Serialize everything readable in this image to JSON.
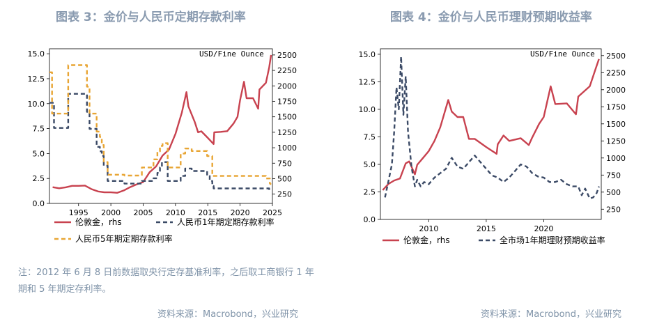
{
  "left": {
    "title": "图表 3：金价与人民币定期存款利率",
    "unit_label": "USD/Fine Ounce",
    "note": "注：2012 年 6 月 8 日前数据取央行定存基准利率，之后取工商银行 1 年期和 5 年期定存利率。",
    "source": "资料来源：Macrobond，兴业研究"
  },
  "right": {
    "title": "图表 4：金价与人民币理财预期收益率",
    "unit_label": "USD/Fine Ounce",
    "source": "资料来源：Macrobond，兴业研究"
  },
  "chart_data": [
    {
      "type": "line",
      "title": "图表 3：金价与人民币定期存款利率",
      "x_ticks": [
        "1995",
        "2000",
        "2005",
        "2010",
        "2015",
        "2020",
        "2025"
      ],
      "y_left_ticks": [
        "0.0",
        "2.5",
        "5.0",
        "7.5",
        "10.0",
        "12.5",
        "15.0"
      ],
      "y_right_ticks": [
        "250",
        "500",
        "750",
        "1000",
        "1250",
        "1500",
        "1750",
        "2000",
        "2250",
        "2500"
      ],
      "xlim": [
        1990.5,
        2025
      ],
      "ylim_left": [
        0,
        15.5
      ],
      "ylim_right": [
        100,
        2600
      ],
      "legend": [
        "伦敦金，rhs",
        "人民币1年期定期存款利率",
        "人民币5年期定期存款利率"
      ],
      "colors": {
        "gold": "#c8424f",
        "rate1y": "#3b4a66",
        "rate5y": "#e8a534"
      },
      "series": [
        {
          "name": "伦敦金，rhs",
          "axis": "right",
          "style": "solid",
          "x": [
            1991,
            1992,
            1993,
            1994,
            1995,
            1996,
            1997,
            1998,
            1999,
            2000,
            2001,
            2002,
            2003,
            2004,
            2005,
            2006,
            2007,
            2008,
            2009,
            2010,
            2011,
            2011.7,
            2012,
            2013,
            2013.5,
            2014,
            2015,
            2015.9,
            2016,
            2017,
            2018,
            2019,
            2019.6,
            2020,
            2020.6,
            2021,
            2022,
            2022.8,
            2023,
            2024,
            2024.5,
            2024.8
          ],
          "y": [
            362,
            344,
            360,
            384,
            384,
            388,
            331,
            294,
            279,
            279,
            271,
            310,
            363,
            409,
            445,
            604,
            697,
            872,
            972,
            1225,
            1572,
            1900,
            1669,
            1411,
            1250,
            1266,
            1160,
            1060,
            1250,
            1257,
            1268,
            1393,
            1500,
            1770,
            2067,
            1800,
            1800,
            1630,
            1941,
            2050,
            2300,
            2500
          ]
        },
        {
          "name": "人民币1年期定期存款利率",
          "axis": "left",
          "style": "dash",
          "x": [
            1990.5,
            1991.2,
            1991.2,
            1993.4,
            1993.4,
            1996.3,
            1996.3,
            1996.7,
            1996.7,
            1997.8,
            1997.8,
            1998.3,
            1998.3,
            1998.6,
            1998.6,
            1998.9,
            1998.9,
            1999.5,
            1999.5,
            2002.1,
            2002.1,
            2004.8,
            2004.8,
            2006.6,
            2006.6,
            2007.2,
            2007.2,
            2007.6,
            2007.6,
            2007.9,
            2007.9,
            2008.8,
            2008.8,
            2010.8,
            2010.8,
            2011.5,
            2011.5,
            2012.5,
            2012.5,
            2014.9,
            2014.9,
            2015.3,
            2015.3,
            2015.7,
            2015.7,
            2015.9,
            2015.9,
            2024.5,
            2024.5,
            2024.7
          ],
          "y": [
            10.08,
            10.08,
            7.56,
            7.56,
            10.98,
            10.98,
            9.18,
            9.18,
            7.47,
            7.47,
            5.67,
            5.67,
            5.22,
            5.22,
            4.77,
            4.77,
            3.78,
            3.78,
            2.25,
            2.25,
            1.98,
            1.98,
            2.25,
            2.25,
            2.52,
            2.52,
            3.06,
            3.06,
            3.6,
            3.6,
            4.14,
            4.14,
            2.25,
            2.25,
            2.75,
            2.75,
            3.5,
            3.5,
            3.25,
            3.25,
            2.75,
            2.75,
            2.25,
            2.25,
            1.75,
            1.75,
            1.5,
            1.5,
            1.35,
            1.1
          ]
        },
        {
          "name": "人民币5年期定期存款利率",
          "axis": "left",
          "style": "dash",
          "x": [
            1990.5,
            1990.9,
            1990.9,
            1991.2,
            1991.2,
            1993.4,
            1993.4,
            1996.3,
            1996.3,
            1996.7,
            1996.7,
            1997.8,
            1997.8,
            1998.3,
            1998.3,
            1998.6,
            1998.6,
            1998.9,
            1998.9,
            1999.5,
            1999.5,
            2002.1,
            2002.1,
            2004.8,
            2004.8,
            2006.6,
            2006.6,
            2007.2,
            2007.2,
            2007.6,
            2007.6,
            2008.0,
            2008.0,
            2008.8,
            2008.8,
            2010.8,
            2010.8,
            2011.5,
            2011.5,
            2012.5,
            2012.5,
            2014.9,
            2014.9,
            2015.7,
            2015.7,
            2024.0,
            2024.0,
            2024.6,
            2024.6,
            2024.8
          ],
          "y": [
            13.14,
            13.14,
            9.0,
            9.0,
            9.0,
            9.0,
            13.86,
            13.86,
            11.7,
            11.7,
            9.0,
            9.0,
            7.2,
            7.2,
            6.66,
            6.66,
            5.85,
            5.85,
            4.14,
            4.14,
            2.88,
            2.88,
            2.79,
            2.79,
            3.6,
            3.6,
            4.41,
            4.41,
            5.22,
            5.22,
            5.76,
            5.76,
            6.03,
            6.03,
            3.6,
            3.6,
            5.0,
            5.0,
            5.5,
            5.5,
            5.25,
            5.25,
            4.75,
            4.75,
            2.75,
            2.75,
            2.5,
            2.5,
            2.0,
            1.9
          ]
        }
      ]
    },
    {
      "type": "line",
      "title": "图表 4：金价与人民币理财预期收益率",
      "x_ticks": [
        "2010",
        "2015",
        "2020"
      ],
      "y_left_ticks": [
        "0.0",
        "2.5",
        "5.0",
        "7.5",
        "10.0",
        "12.5",
        "15.0"
      ],
      "y_right_ticks": [
        "250",
        "500",
        "750",
        "1000",
        "1250",
        "1500",
        "1750",
        "2000",
        "2250",
        "2500"
      ],
      "xlim": [
        2005.8,
        2025
      ],
      "ylim_left": [
        0,
        15.5
      ],
      "ylim_right": [
        100,
        2600
      ],
      "legend": [
        "伦敦金，rhs",
        "全市场1年期理财预期收益率"
      ],
      "colors": {
        "gold": "#c8424f",
        "wmp": "#3b4a66"
      },
      "series": [
        {
          "name": "伦敦金，rhs",
          "axis": "right",
          "style": "solid",
          "x": [
            2006,
            2006.5,
            2007,
            2007.5,
            2008,
            2008.3,
            2008.8,
            2009,
            2009.5,
            2010,
            2010.5,
            2011,
            2011.7,
            2012,
            2012.5,
            2013,
            2013.5,
            2014,
            2015,
            2015.9,
            2016,
            2016.5,
            2017,
            2018,
            2018.7,
            2019,
            2019.6,
            2020,
            2020.6,
            2021,
            2022,
            2022.8,
            2023,
            2024,
            2024.5,
            2024.8
          ],
          "y": [
            530,
            620,
            670,
            700,
            920,
            950,
            760,
            900,
            1000,
            1100,
            1250,
            1450,
            1850,
            1680,
            1600,
            1600,
            1280,
            1280,
            1160,
            1060,
            1200,
            1330,
            1250,
            1290,
            1190,
            1300,
            1500,
            1600,
            2050,
            1790,
            1800,
            1640,
            1900,
            2050,
            2300,
            2450
          ]
        },
        {
          "name": "全市场1年期理财预期收益率",
          "axis": "left",
          "style": "dash",
          "x": [
            2006.2,
            2006.5,
            2006.8,
            2007.0,
            2007.2,
            2007.4,
            2007.6,
            2007.8,
            2008.0,
            2008.2,
            2008.5,
            2008.8,
            2009.0,
            2009.3,
            2009.6,
            2010,
            2010.5,
            2011,
            2011.5,
            2012,
            2012.5,
            2013,
            2013.5,
            2014,
            2014.5,
            2015,
            2015.5,
            2016,
            2016.5,
            2017,
            2017.5,
            2018,
            2018.5,
            2019,
            2019.5,
            2020,
            2020.5,
            2021,
            2021.5,
            2022,
            2022.5,
            2023,
            2023.3,
            2023.6,
            2024,
            2024.3,
            2024.6,
            2024.8
          ],
          "y": [
            2.0,
            3.5,
            5.0,
            8.0,
            12.0,
            10.0,
            14.8,
            9.5,
            13.0,
            8.0,
            4.8,
            3.0,
            3.6,
            3.0,
            3.4,
            3.2,
            3.8,
            4.2,
            4.6,
            5.6,
            4.8,
            4.6,
            5.2,
            5.8,
            5.2,
            4.6,
            4.0,
            3.8,
            3.4,
            3.8,
            4.4,
            5.0,
            4.8,
            4.2,
            3.9,
            3.8,
            3.4,
            3.4,
            3.6,
            3.2,
            3.0,
            3.0,
            2.2,
            2.8,
            1.9,
            2.0,
            2.4,
            3.0
          ]
        }
      ]
    }
  ]
}
